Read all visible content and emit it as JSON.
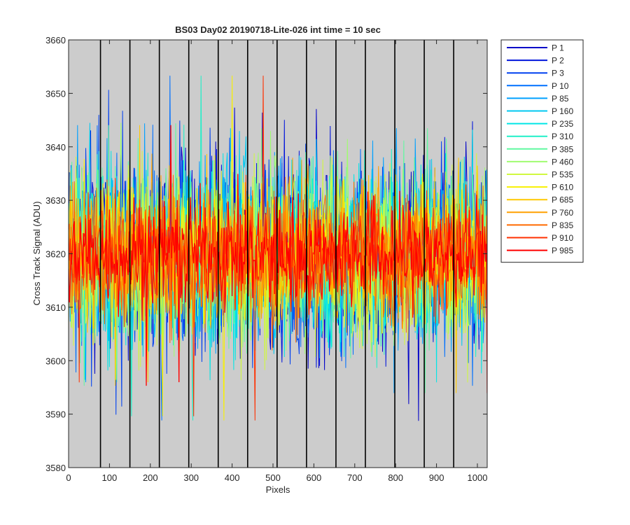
{
  "chart_data": {
    "type": "line",
    "title": "BS03 Day02 20190718-Lite-026 int time = 10 sec",
    "xlabel": "Pixels",
    "ylabel": "Cross Track Signal (ADU)",
    "xlim": [
      0,
      1024
    ],
    "ylim": [
      3580,
      3660
    ],
    "x_ticks": [
      0,
      100,
      200,
      300,
      400,
      500,
      600,
      700,
      800,
      900,
      1000
    ],
    "y_ticks": [
      3580,
      3590,
      3600,
      3610,
      3620,
      3630,
      3640,
      3650,
      3660
    ],
    "background_color": "#cccccc",
    "separator_lines_x": [
      78,
      150,
      222,
      294,
      366,
      438,
      510,
      582,
      654,
      726,
      798,
      870,
      942
    ],
    "separator_color": "#000000",
    "legend_position": "outside-top-right",
    "series_mean": 3620,
    "series": [
      {
        "name": "P 1",
        "color": "#0000c8"
      },
      {
        "name": "P 2",
        "color": "#0014dc"
      },
      {
        "name": "P 3",
        "color": "#0040f0"
      },
      {
        "name": "P 10",
        "color": "#0070ff"
      },
      {
        "name": "P 85",
        "color": "#00a0ff"
      },
      {
        "name": "P 160",
        "color": "#00c8f0"
      },
      {
        "name": "P 235",
        "color": "#00e6e6"
      },
      {
        "name": "P 310",
        "color": "#20f0c8"
      },
      {
        "name": "P 385",
        "color": "#60f8a0"
      },
      {
        "name": "P 460",
        "color": "#a0fc70"
      },
      {
        "name": "P 535",
        "color": "#d0f840"
      },
      {
        "name": "P 610",
        "color": "#f8f000"
      },
      {
        "name": "P 685",
        "color": "#ffc800"
      },
      {
        "name": "P 760",
        "color": "#ffa000"
      },
      {
        "name": "P 835",
        "color": "#ff6a00"
      },
      {
        "name": "P 910",
        "color": "#ff3000"
      },
      {
        "name": "P 985",
        "color": "#ff0000"
      }
    ]
  }
}
